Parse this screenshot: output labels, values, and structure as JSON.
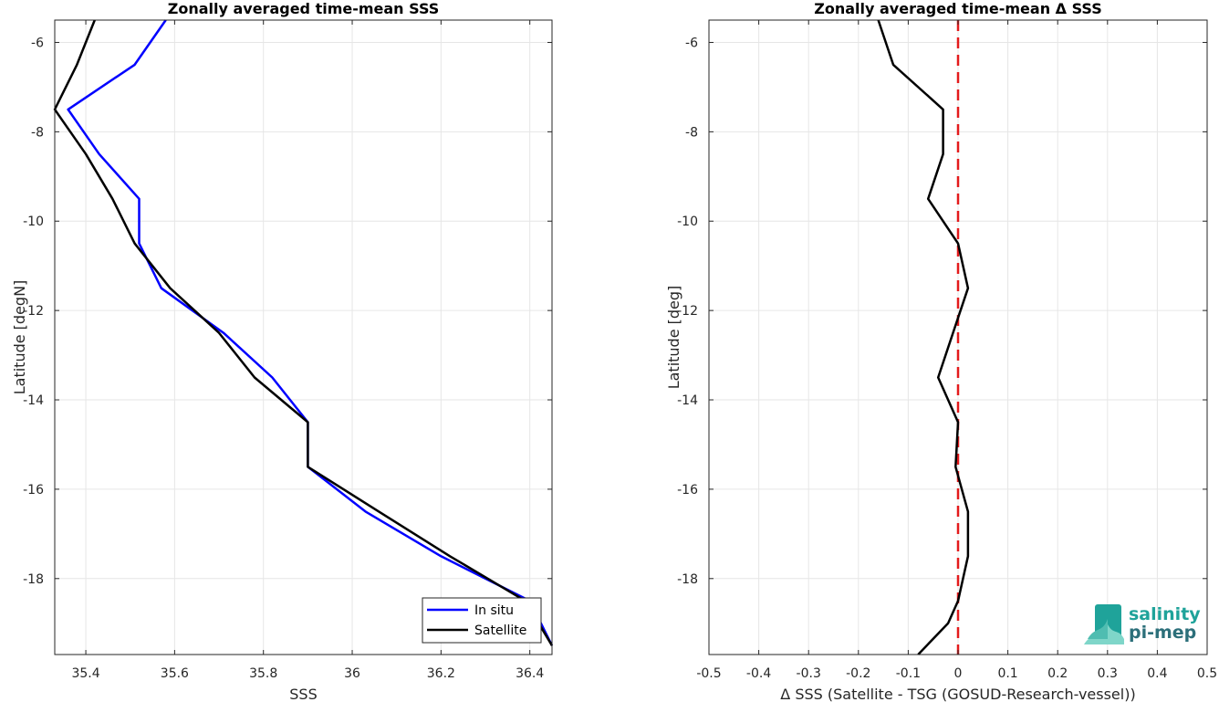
{
  "chart_data": [
    {
      "type": "line",
      "title": "Zonally averaged time-mean SSS",
      "xlabel": "SSS",
      "ylabel": "Latitude [degN]",
      "xlim": [
        35.33,
        36.45
      ],
      "ylim": [
        -19.7,
        -5.5
      ],
      "xticks": [
        35.4,
        35.6,
        35.8,
        36,
        36.2,
        36.4
      ],
      "xtick_labels": [
        "35.4",
        "35.6",
        "35.8",
        "36",
        "36.2",
        "36.4"
      ],
      "yticks": [
        -6,
        -8,
        -10,
        -12,
        -14,
        -16,
        -18
      ],
      "ytick_labels": [
        "-6",
        "-8",
        "-10",
        "-12",
        "-14",
        "-16",
        "-18"
      ],
      "grid": true,
      "legend_position": "bottom-right",
      "series": [
        {
          "name": "In situ",
          "color": "#0000ff",
          "points": [
            [
              35.58,
              -5.5
            ],
            [
              35.51,
              -6.5
            ],
            [
              35.36,
              -7.5
            ],
            [
              35.43,
              -8.5
            ],
            [
              35.52,
              -9.5
            ],
            [
              35.52,
              -10.5
            ],
            [
              35.57,
              -11.5
            ],
            [
              35.71,
              -12.5
            ],
            [
              35.82,
              -13.5
            ],
            [
              35.9,
              -14.5
            ],
            [
              35.9,
              -15.5
            ],
            [
              36.03,
              -16.5
            ],
            [
              36.2,
              -17.5
            ],
            [
              36.4,
              -18.5
            ],
            [
              36.45,
              -19.5
            ]
          ]
        },
        {
          "name": "Satellite",
          "color": "#000000",
          "points": [
            [
              35.42,
              -5.5
            ],
            [
              35.38,
              -6.5
            ],
            [
              35.33,
              -7.5
            ],
            [
              35.4,
              -8.5
            ],
            [
              35.46,
              -9.5
            ],
            [
              35.51,
              -10.5
            ],
            [
              35.59,
              -11.5
            ],
            [
              35.7,
              -12.5
            ],
            [
              35.78,
              -13.5
            ],
            [
              35.9,
              -14.5
            ],
            [
              35.9,
              -15.5
            ],
            [
              36.06,
              -16.5
            ],
            [
              36.22,
              -17.5
            ],
            [
              36.39,
              -18.5
            ],
            [
              36.45,
              -19.5
            ]
          ]
        }
      ]
    },
    {
      "type": "line",
      "title": "Zonally averaged time-mean Δ SSS",
      "xlabel": "Δ SSS (Satellite - TSG (GOSUD-Research-vessel))",
      "ylabel": "Latitude [deg]",
      "xlim": [
        -0.5,
        0.5
      ],
      "ylim": [
        -19.7,
        -5.5
      ],
      "xticks": [
        -0.5,
        -0.4,
        -0.3,
        -0.2,
        -0.1,
        0,
        0.1,
        0.2,
        0.3,
        0.4,
        0.5
      ],
      "xtick_labels": [
        "-0.5",
        "-0.4",
        "-0.3",
        "-0.2",
        "-0.1",
        "0",
        "0.1",
        "0.2",
        "0.3",
        "0.4",
        "0.5"
      ],
      "yticks": [
        -6,
        -8,
        -10,
        -12,
        -14,
        -16,
        -18
      ],
      "ytick_labels": [
        "-6",
        "-8",
        "-10",
        "-12",
        "-14",
        "-16",
        "-18"
      ],
      "grid": true,
      "reference_line": {
        "x": 0,
        "color": "#e31a1c",
        "style": "dashed"
      },
      "series": [
        {
          "color": "#000000",
          "points": [
            [
              -0.16,
              -5.5
            ],
            [
              -0.13,
              -6.5
            ],
            [
              -0.03,
              -7.5
            ],
            [
              -0.03,
              -8.5
            ],
            [
              -0.06,
              -9.5
            ],
            [
              0.0,
              -10.5
            ],
            [
              0.02,
              -11.5
            ],
            [
              -0.01,
              -12.5
            ],
            [
              -0.04,
              -13.5
            ],
            [
              0.0,
              -14.5
            ],
            [
              -0.005,
              -15.5
            ],
            [
              0.02,
              -16.5
            ],
            [
              0.02,
              -17.5
            ],
            [
              0.0,
              -18.5
            ],
            [
              -0.02,
              -19.0
            ],
            [
              -0.08,
              -19.7
            ]
          ]
        }
      ]
    }
  ],
  "logo": {
    "line1": "salinity",
    "line2": "pi-mep"
  }
}
